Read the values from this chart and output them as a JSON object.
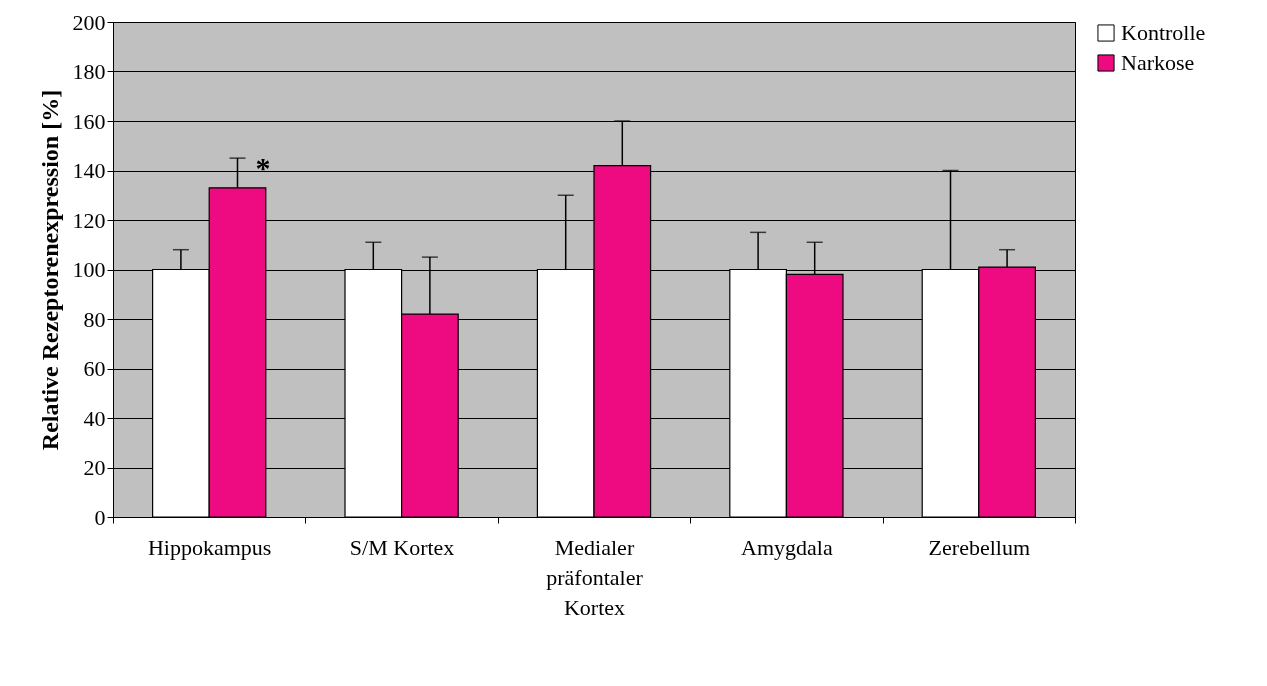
{
  "chart_data": {
    "type": "bar",
    "ylabel": "Relative Rezeptorenexpression [%]",
    "categories": [
      "Hippokampus",
      "S/M Kortex",
      "Medialer präfontaler Kortex",
      "Amygdala",
      "Zerebellum"
    ],
    "series": [
      {
        "name": "Kontrolle",
        "color": "#ffffff",
        "values": [
          100,
          100,
          100,
          100,
          100
        ],
        "errors": [
          [
            100,
            108
          ],
          [
            100,
            111
          ],
          [
            100,
            130
          ],
          [
            100,
            115
          ],
          [
            100,
            140
          ]
        ]
      },
      {
        "name": "Narkose",
        "color": "#ee0a80",
        "values": [
          133,
          82,
          142,
          98,
          101
        ],
        "errors": [
          [
            133,
            145
          ],
          [
            82,
            105
          ],
          [
            142,
            160
          ],
          [
            98,
            111
          ],
          [
            101,
            108
          ]
        ]
      }
    ],
    "ylim": [
      0,
      200
    ],
    "yticks": [
      0,
      20,
      40,
      60,
      80,
      100,
      120,
      140,
      160,
      180,
      200
    ],
    "grid": "y",
    "legend": "right",
    "annotations": [
      "*"
    ]
  }
}
